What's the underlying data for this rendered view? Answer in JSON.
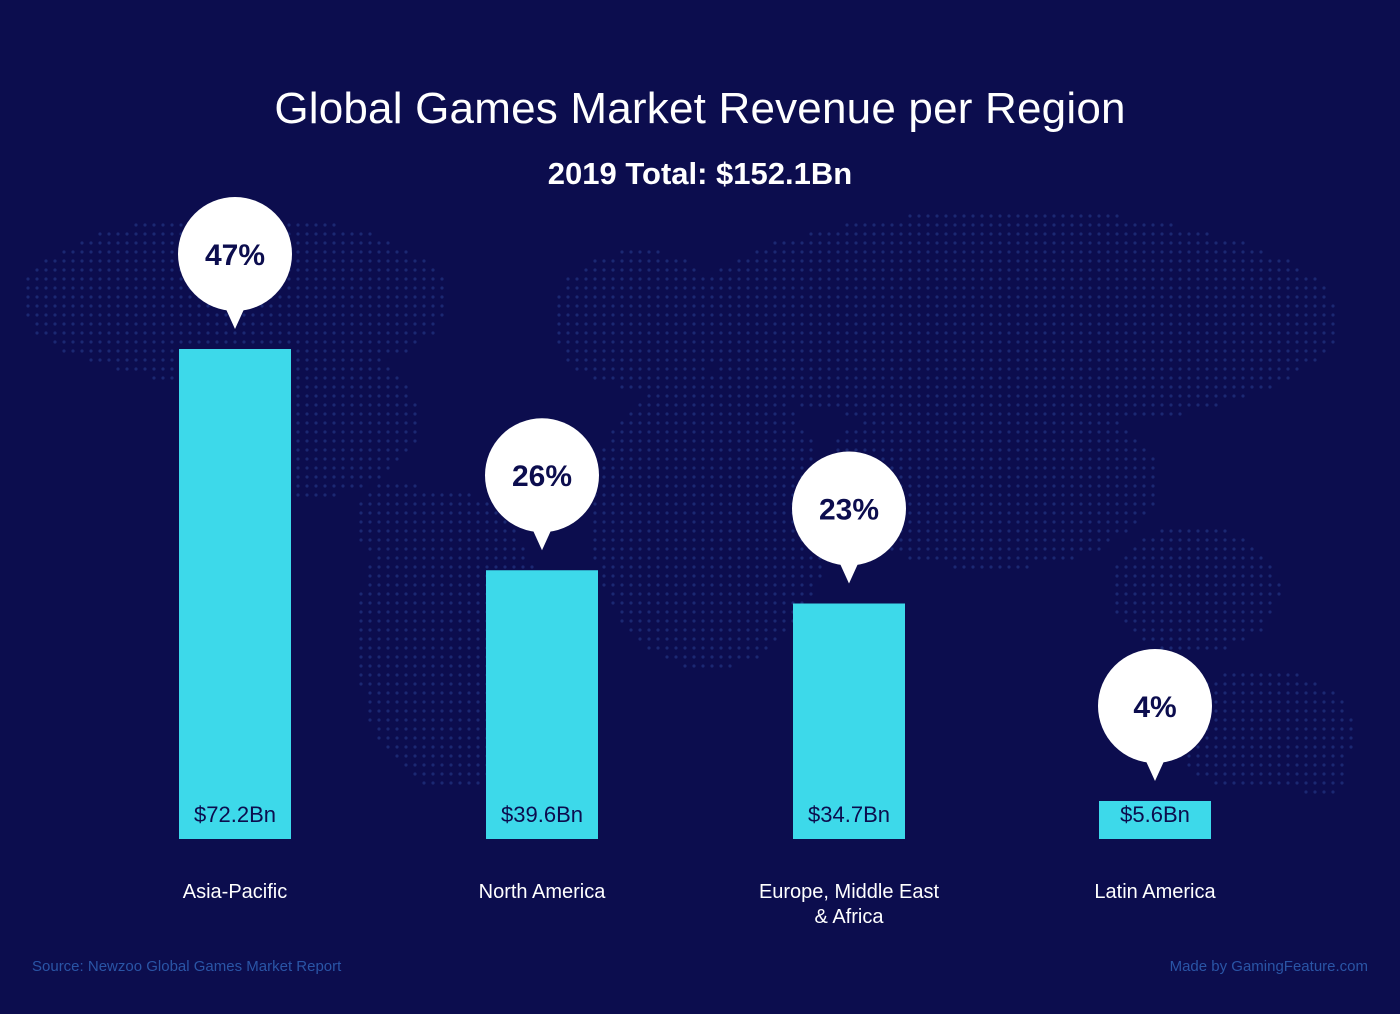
{
  "colors": {
    "background": "#0c0d4e",
    "bar": "#3dd9ea",
    "bubble": "#ffffff",
    "value_text": "#0c0d4e",
    "footer_text": "#2a55a6"
  },
  "footer": {
    "source": "Source: Newzoo Global Games Market Report",
    "credit": "Made by GamingFeature.com"
  },
  "chart_data": {
    "type": "bar",
    "title": "Global Games Market Revenue per Region",
    "subtitle": "2019 Total: $152.1Bn",
    "xlabel": "",
    "ylabel": "",
    "ylim": [
      0,
      72.2
    ],
    "grid": false,
    "categories": [
      [
        "Asia-Pacific"
      ],
      [
        "North America"
      ],
      [
        "Europe, Middle East",
        "& Africa"
      ],
      [
        "Latin America"
      ]
    ],
    "values": [
      72.2,
      39.6,
      34.7,
      5.6
    ],
    "value_labels": [
      "$72.2Bn",
      "$39.6Bn",
      "$34.7Bn",
      "$5.6Bn"
    ],
    "percent_labels": [
      "47%",
      "26%",
      "23%",
      "4%"
    ]
  }
}
